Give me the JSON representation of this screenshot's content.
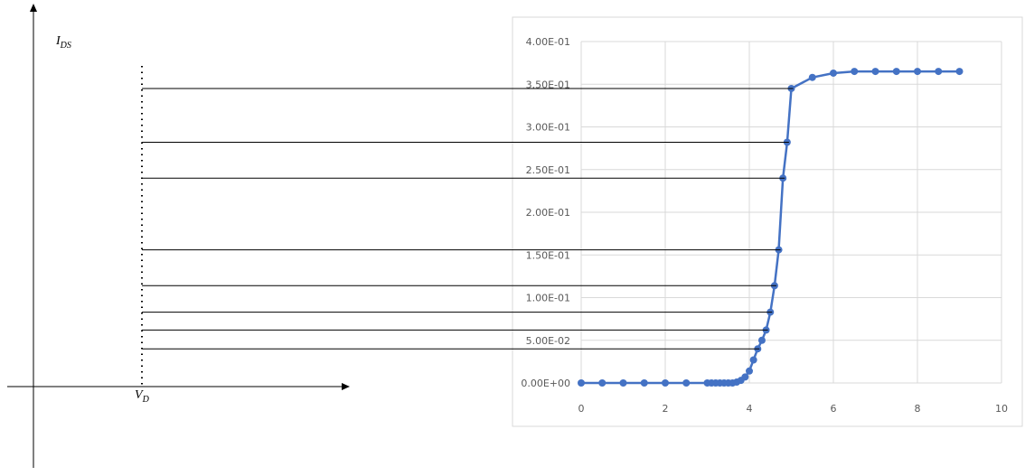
{
  "sketch": {
    "y_axis_label": {
      "base": "I",
      "sub": "DS"
    },
    "x_axis_label": {
      "base": "V",
      "sub": "D"
    },
    "projected_levels": [
      0.345,
      0.282,
      0.24,
      0.156,
      0.114,
      0.083,
      0.062,
      0.04
    ]
  },
  "chart_data": {
    "type": "scatter",
    "title": "",
    "xlabel": "",
    "ylabel": "",
    "xlim": [
      0,
      10
    ],
    "ylim": [
      0,
      0.4
    ],
    "grid": true,
    "legend": "none",
    "x_ticks": [
      "0",
      "2",
      "4",
      "6",
      "8",
      "10"
    ],
    "y_ticks": [
      "0.00E+00",
      "5.00E-02",
      "1.00E-01",
      "1.50E-01",
      "2.00E-01",
      "2.50E-01",
      "3.00E-01",
      "3.50E-01",
      "4.00E-01"
    ],
    "series": [
      {
        "color": "#4472C4",
        "x": [
          0,
          0.5,
          1,
          1.5,
          2,
          2.5,
          3,
          3.1,
          3.2,
          3.3,
          3.4,
          3.5,
          3.6,
          3.7,
          3.8,
          3.9,
          4.0,
          4.1,
          4.2,
          4.3,
          4.4,
          4.5,
          4.6,
          4.7,
          4.8,
          4.9,
          5.0,
          5.5,
          6,
          6.5,
          7,
          7.5,
          8,
          8.5,
          9
        ],
        "y": [
          0,
          0,
          0,
          0,
          0,
          0,
          0,
          0,
          0,
          0,
          0,
          0,
          0,
          0.001,
          0.003,
          0.007,
          0.014,
          0.027,
          0.04,
          0.05,
          0.062,
          0.083,
          0.114,
          0.156,
          0.24,
          0.282,
          0.345,
          0.358,
          0.363,
          0.365,
          0.365,
          0.365,
          0.365,
          0.365,
          0.365
        ]
      }
    ]
  }
}
